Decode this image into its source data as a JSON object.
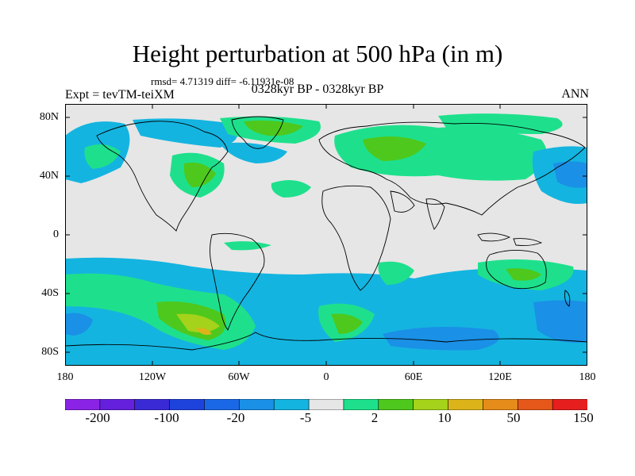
{
  "title": "Height perturbation at 500 hPa (in m)",
  "stats": "rmsd= 4.71319  diff= -6.11931e-08",
  "experiment": "Expt = tevTM-teiXM",
  "period": "0328kyr BP - 0328kyr BP",
  "season": "ANN",
  "colors": {
    "ocean_bg": "#e6e6e6",
    "coastline": "#000000",
    "palette": [
      "#8a23e6",
      "#6420dc",
      "#3a2ad6",
      "#1e43dd",
      "#1a68e6",
      "#1a90e6",
      "#14b4e0",
      "#e6e6e6",
      "#1ee08c",
      "#4ec81c",
      "#a5d21a",
      "#dcb41a",
      "#e68c1a",
      "#e6581a",
      "#e61e1e"
    ]
  },
  "map": {
    "y_ticks": [
      "80N",
      "40N",
      "0",
      "40S",
      "80S"
    ],
    "x_ticks": [
      "180",
      "120W",
      "60W",
      "0",
      "60E",
      "120E",
      "180"
    ]
  },
  "colorbar": {
    "labels": [
      "-200",
      "-100",
      "-20",
      "-5",
      "2",
      "10",
      "50",
      "150"
    ]
  }
}
